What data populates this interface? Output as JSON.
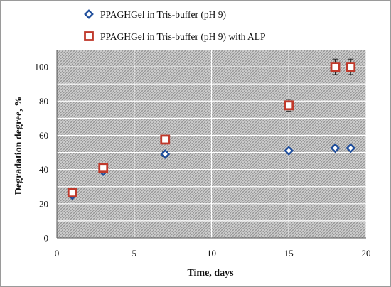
{
  "chart_data": {
    "type": "scatter",
    "title": "",
    "xlabel": "Time, days",
    "ylabel": "Degradation degree, %",
    "xlim": [
      0,
      20
    ],
    "ylim": [
      0,
      110
    ],
    "x_ticks": [
      "0",
      "5",
      "10",
      "15",
      "20"
    ],
    "y_ticks": [
      "0",
      "20",
      "40",
      "60",
      "80",
      "100"
    ],
    "grid": true,
    "legend_position": "top",
    "series": [
      {
        "name": "PPAGHGel in Tris-buffer (pH 9)",
        "marker": "diamond",
        "color": "#1f4e9c",
        "x": [
          1,
          3,
          7,
          15,
          18,
          19
        ],
        "y": [
          25,
          39,
          49,
          51,
          52.5,
          52.5
        ],
        "error": [
          1,
          1,
          1.5,
          1.5,
          1.5,
          1.5
        ]
      },
      {
        "name": "PPAGHGel in Tris-buffer (pH 9) with ALP",
        "marker": "square",
        "color": "#c0392b",
        "x": [
          1,
          3,
          7,
          15,
          18,
          19
        ],
        "y": [
          26.5,
          41,
          57.5,
          77.5,
          100,
          100
        ],
        "error": [
          1,
          1,
          1.5,
          3.5,
          4.5,
          4.5
        ]
      }
    ]
  }
}
